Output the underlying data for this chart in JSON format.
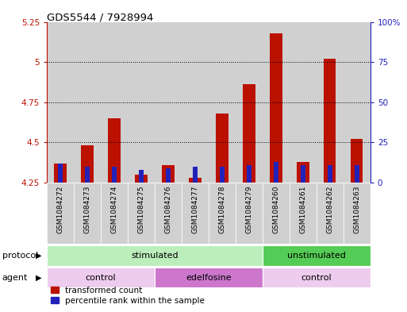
{
  "title": "GDS5544 / 7928994",
  "categories": [
    "GSM1084272",
    "GSM1084273",
    "GSM1084274",
    "GSM1084275",
    "GSM1084276",
    "GSM1084277",
    "GSM1084278",
    "GSM1084279",
    "GSM1084260",
    "GSM1084261",
    "GSM1084262",
    "GSM1084263"
  ],
  "red_values": [
    4.37,
    4.48,
    4.65,
    4.3,
    4.36,
    4.28,
    4.68,
    4.86,
    5.18,
    4.38,
    5.02,
    4.52
  ],
  "blue_values": [
    0.12,
    0.1,
    0.1,
    0.08,
    0.09,
    0.1,
    0.1,
    0.11,
    0.13,
    0.11,
    0.11,
    0.11
  ],
  "ymin": 4.25,
  "ymax": 5.25,
  "yticks": [
    4.25,
    4.5,
    4.75,
    5.0,
    5.25
  ],
  "ytick_labels": [
    "4.25",
    "4.5",
    "4.75",
    "5",
    "5.25"
  ],
  "y2min": 0,
  "y2max": 100,
  "y2ticks": [
    0,
    25,
    50,
    75,
    100
  ],
  "y2tick_labels": [
    "0",
    "25",
    "50",
    "75",
    "100%"
  ],
  "red_color": "#bb1100",
  "blue_color": "#2222bb",
  "protocol_row": [
    {
      "label": "stimulated",
      "start": 0,
      "end": 8,
      "color": "#bbeebb"
    },
    {
      "label": "unstimulated",
      "start": 8,
      "end": 12,
      "color": "#55cc55"
    }
  ],
  "agent_row": [
    {
      "label": "control",
      "start": 0,
      "end": 4,
      "color": "#eeccee"
    },
    {
      "label": "edelfosine",
      "start": 4,
      "end": 8,
      "color": "#cc77cc"
    },
    {
      "label": "control",
      "start": 8,
      "end": 12,
      "color": "#eeccee"
    }
  ],
  "protocol_label": "protocol",
  "agent_label": "agent",
  "legend_red": "transformed count",
  "legend_blue": "percentile rank within the sample",
  "bg_color": "#ffffff",
  "plot_bg": "#ffffff",
  "red_bar_width": 0.45,
  "blue_bar_width": 0.18,
  "bar_base": 4.25,
  "cell_bg": "#d0d0d0"
}
